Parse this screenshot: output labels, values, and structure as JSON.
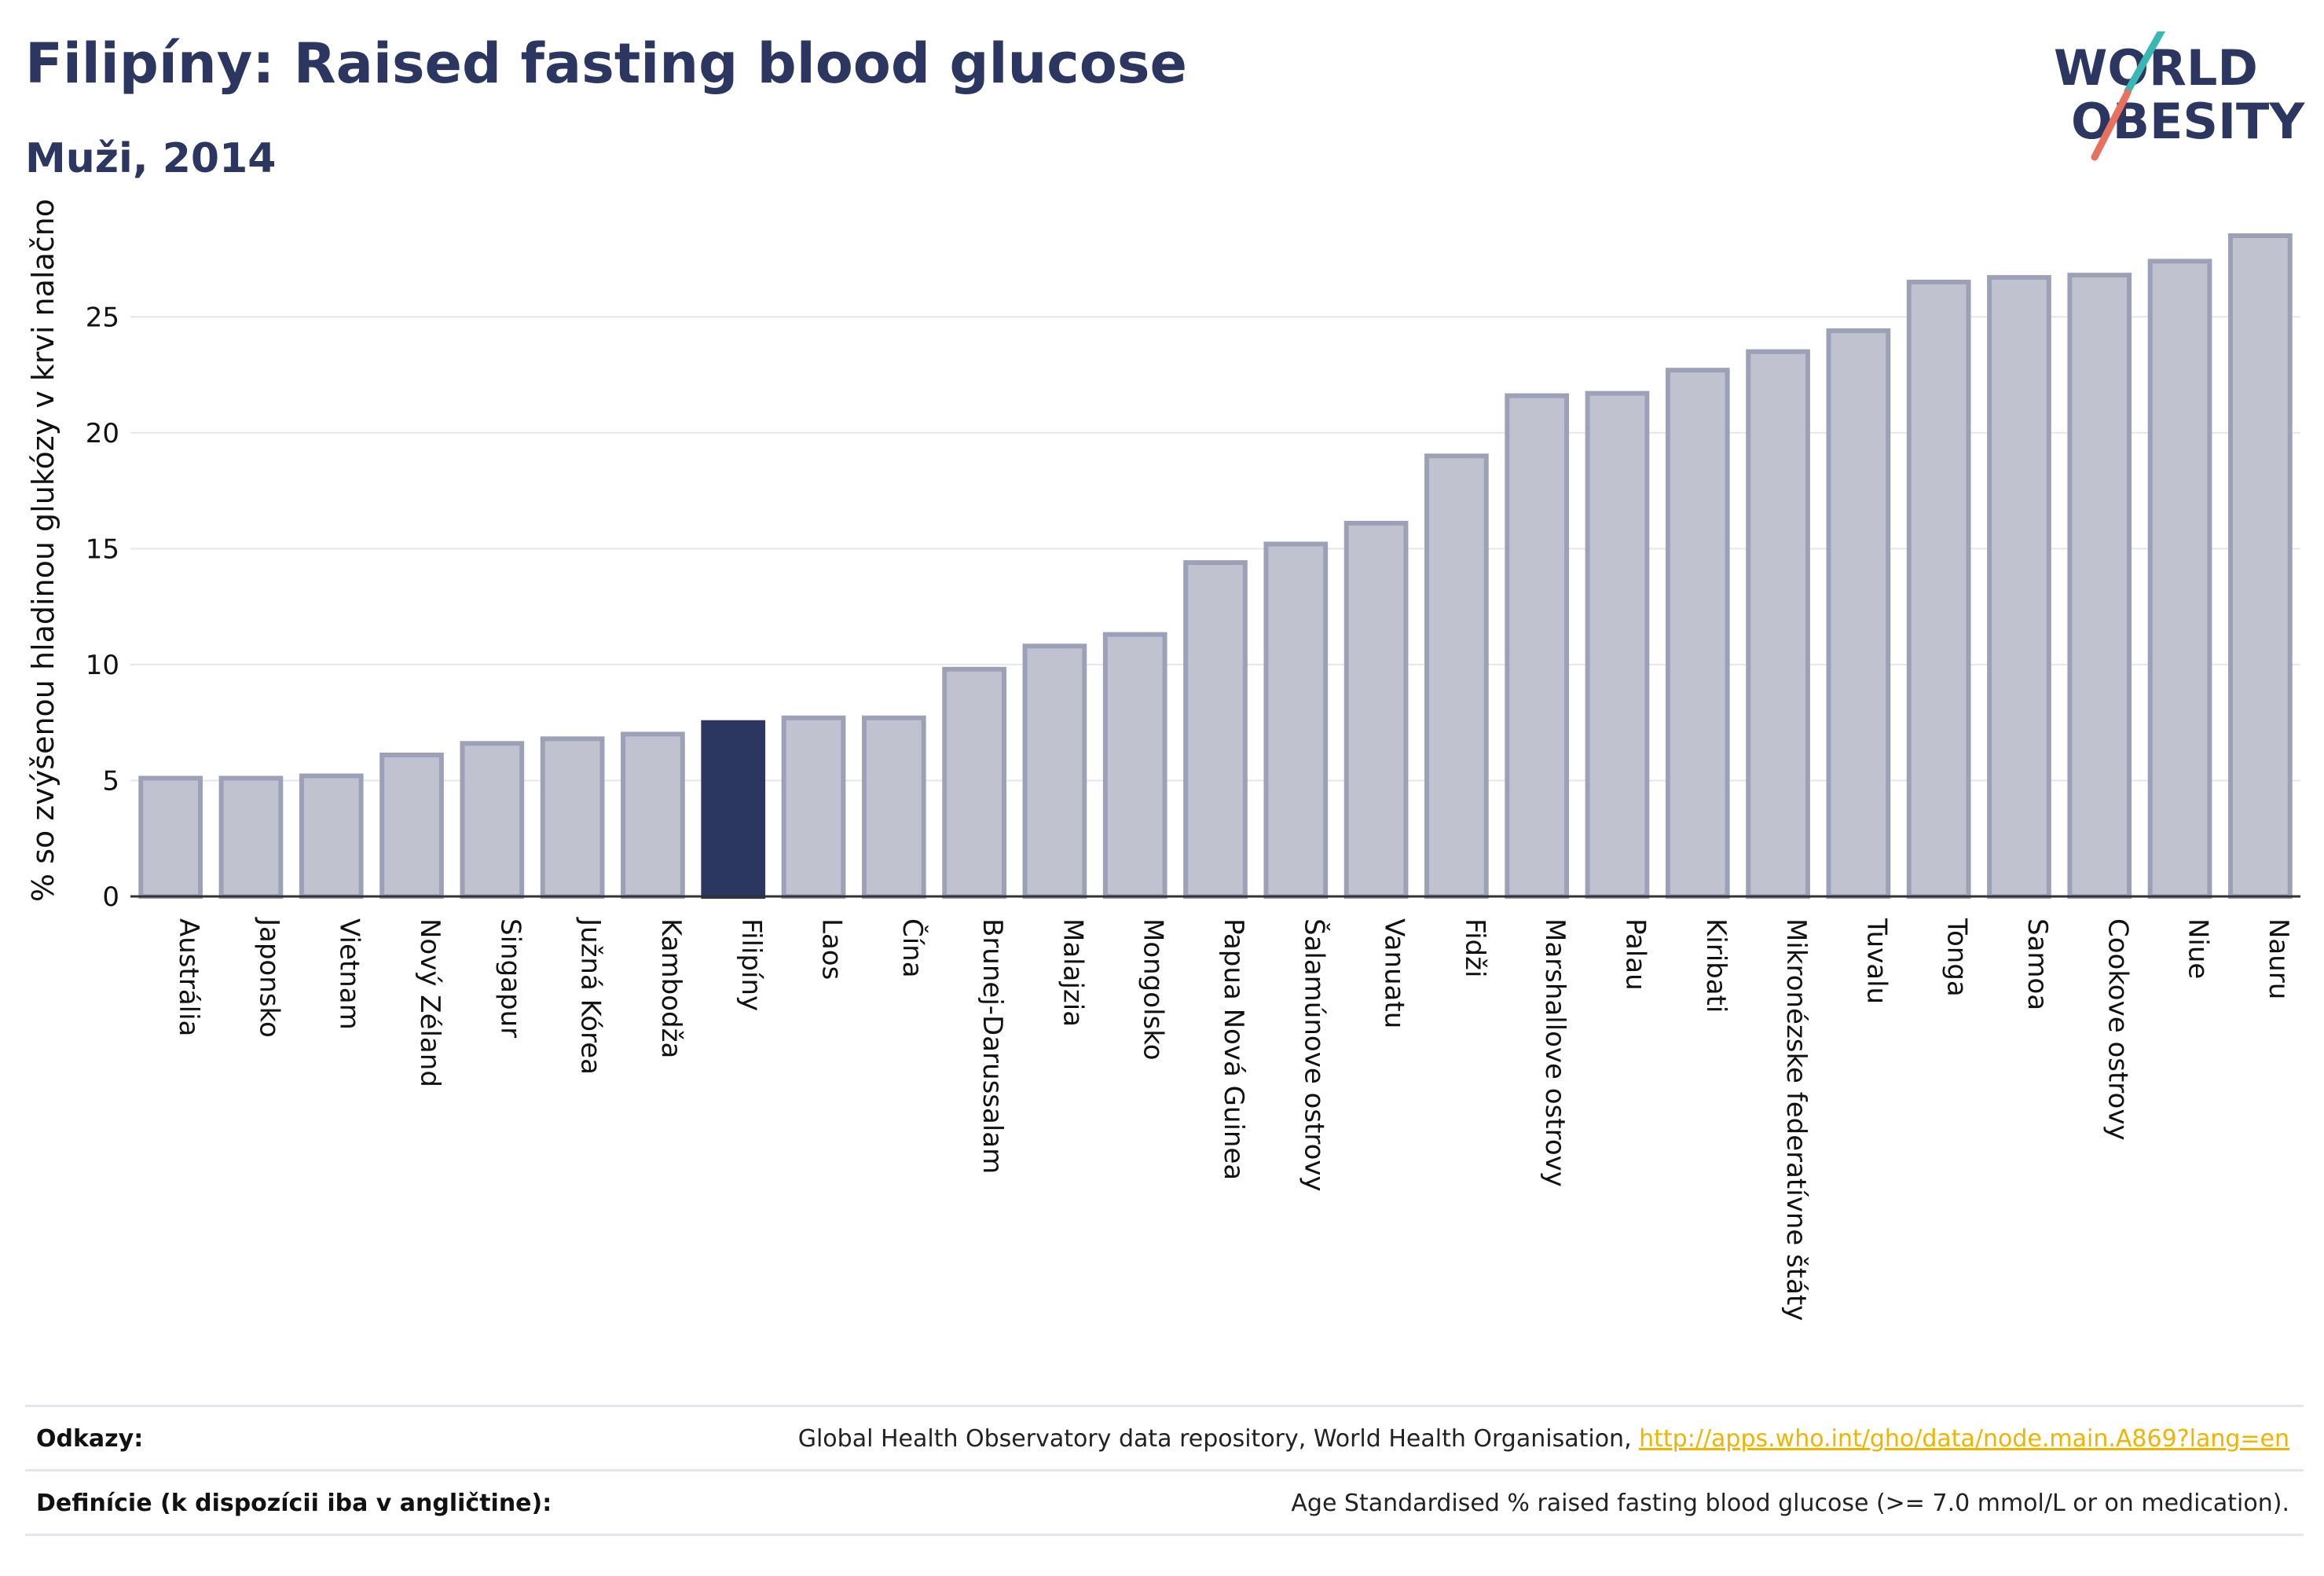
{
  "header": {
    "title": "Filipíny: Raised fasting blood glucose",
    "subtitle": "Muži, 2014"
  },
  "logo": {
    "line1": "WORLD",
    "line2": "OBESITY"
  },
  "chart_data": {
    "type": "bar",
    "ylabel": "% so zvýšenou hladinou glukózy v krvi nalačno",
    "xlabel": "",
    "ylim": [
      0,
      28.5
    ],
    "yticks": [
      0,
      5,
      10,
      15,
      20,
      25
    ],
    "grid": true,
    "highlight": "Filipíny",
    "colors": {
      "default_fill": "#c0c3cf",
      "default_stroke": "#9ca1b8",
      "highlight_fill": "#2b3661",
      "grid": "#e6e6ec",
      "axis": "#333333"
    },
    "categories": [
      "Austrália",
      "Japonsko",
      "Vietnam",
      "Nový Zéland",
      "Singapur",
      "Južná Kórea",
      "Kambodža",
      "Filipíny",
      "Laos",
      "Čína",
      "Brunej-Darussalam",
      "Malajzia",
      "Mongolsko",
      "Papua Nová Guinea",
      "Šalamúnove ostrovy",
      "Vanuatu",
      "Fidži",
      "Marshallove ostrovy",
      "Palau",
      "Kiribati",
      "Mikronézske federatívne štáty",
      "Tuvalu",
      "Tonga",
      "Samoa",
      "Cookove ostrovy",
      "Niue",
      "Nauru"
    ],
    "values": [
      5.1,
      5.1,
      5.2,
      6.1,
      6.6,
      6.8,
      7.0,
      7.5,
      7.7,
      7.7,
      9.8,
      10.8,
      11.3,
      14.4,
      15.2,
      16.1,
      19.0,
      21.6,
      21.7,
      22.7,
      23.5,
      24.4,
      26.5,
      26.7,
      26.8,
      27.4,
      28.5
    ]
  },
  "footer": {
    "sources_label": "Odkazy:",
    "sources_text": "Global Health Observatory data repository, World Health Organisation, ",
    "sources_link": "http://apps.who.int/gho/data/node.main.A869?lang=en",
    "definitions_label": "Definície (k dispozícii iba v angličtine):",
    "definitions_text": "Age Standardised % raised fasting blood glucose (>= 7.0 mmol/L or on medication)."
  }
}
